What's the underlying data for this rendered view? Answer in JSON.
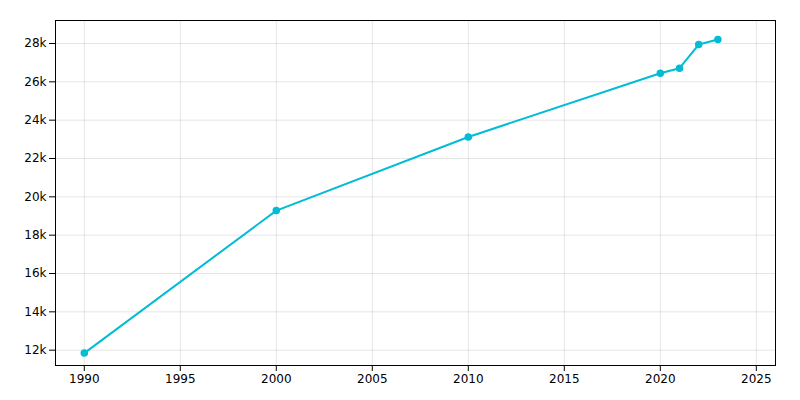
{
  "chart_data": {
    "type": "line",
    "x": [
      1990,
      2000,
      2010,
      2020,
      2021,
      2022,
      2023
    ],
    "values": [
      11847,
      19283,
      23123,
      26449,
      26710,
      27945,
      28205
    ],
    "color": "#00BCD4",
    "marker": "circle",
    "xlim": [
      1988.5,
      2026
    ],
    "ylim": [
      11200,
      29200
    ],
    "xticks": [
      1990,
      1995,
      2000,
      2005,
      2010,
      2015,
      2020,
      2025
    ],
    "yticks": [
      {
        "value": 12000,
        "label": "12k"
      },
      {
        "value": 14000,
        "label": "14k"
      },
      {
        "value": 16000,
        "label": "16k"
      },
      {
        "value": 18000,
        "label": "18k"
      },
      {
        "value": 20000,
        "label": "20k"
      },
      {
        "value": 22000,
        "label": "22k"
      },
      {
        "value": 24000,
        "label": "24k"
      },
      {
        "value": 26000,
        "label": "26k"
      },
      {
        "value": 28000,
        "label": "28k"
      }
    ],
    "grid": true
  }
}
